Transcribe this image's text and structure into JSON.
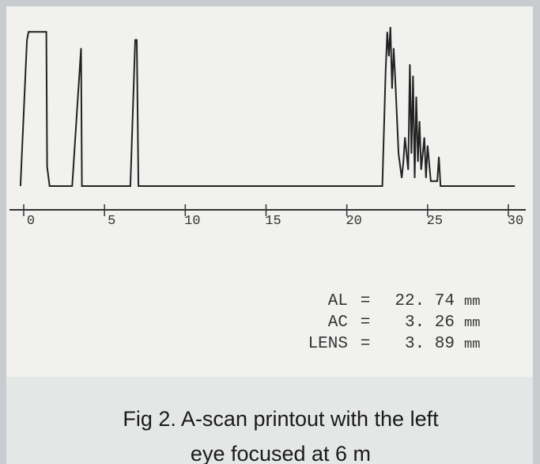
{
  "chart_data": {
    "type": "line",
    "x": [
      -0.2,
      0.2,
      0.3,
      1.4,
      1.45,
      1.6,
      3.0,
      3.55,
      3.6,
      6.6,
      6.9,
      7.0,
      7.1,
      22.2,
      22.4,
      22.5,
      22.6,
      22.7,
      22.8,
      22.9,
      23.0,
      23.2,
      23.4,
      23.5,
      23.6,
      23.8,
      23.9,
      24.0,
      24.1,
      24.2,
      24.3,
      24.4,
      24.5,
      24.6,
      24.8,
      24.9,
      25.0,
      25.2,
      25.6,
      25.7,
      25.8,
      30.4
    ],
    "values": [
      0,
      90,
      95,
      95,
      12,
      0,
      0,
      85,
      0,
      0,
      90,
      90,
      0,
      0,
      70,
      95,
      80,
      98,
      60,
      85,
      65,
      20,
      5,
      15,
      30,
      10,
      75,
      20,
      68,
      5,
      55,
      15,
      40,
      10,
      30,
      5,
      25,
      3,
      3,
      18,
      0,
      0
    ],
    "color": "#222222",
    "xlim": [
      0,
      30
    ],
    "xticks": [
      0,
      5,
      10,
      15,
      20,
      25,
      30
    ],
    "ylim": [
      0,
      100
    ]
  },
  "measurements": [
    {
      "label": "AL",
      "sign": "=",
      "value": "22. 74",
      "unit": "mm"
    },
    {
      "label": "AC",
      "sign": "=",
      "value": "3. 26",
      "unit": "mm"
    },
    {
      "label": "LENS",
      "sign": "=",
      "value": "3. 89",
      "unit": "mm"
    }
  ],
  "caption": [
    "Fig 2. A-scan printout with the left",
    "eye focused at 6 m"
  ]
}
